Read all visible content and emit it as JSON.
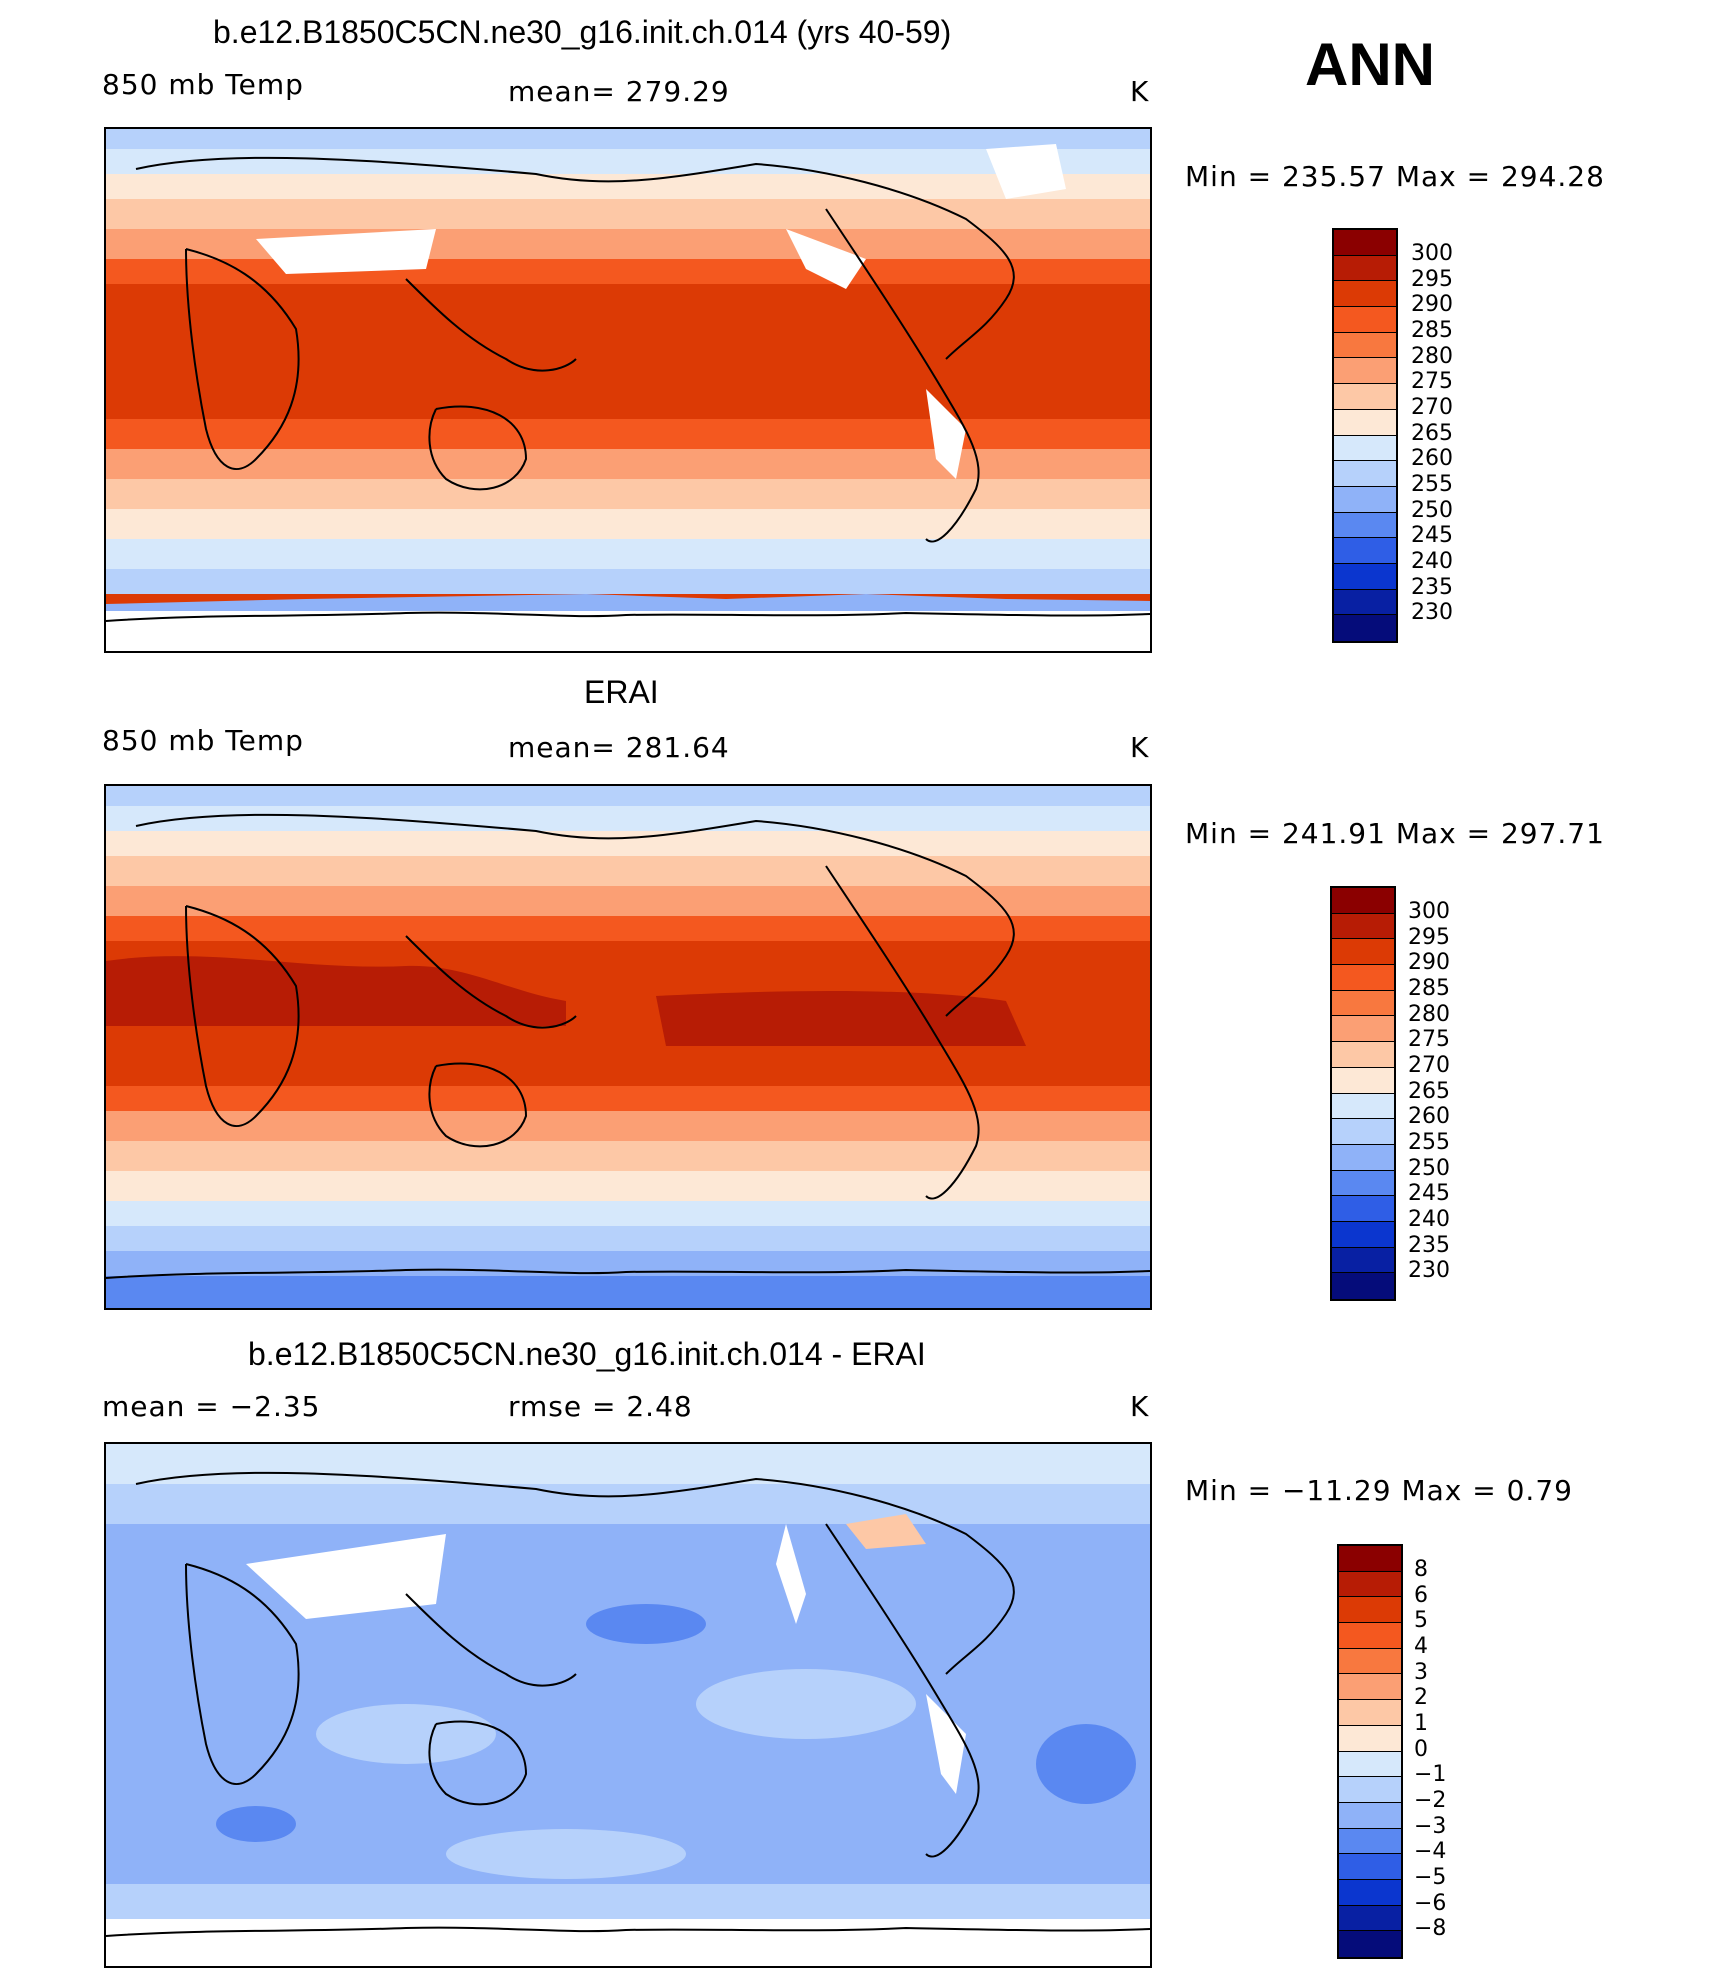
{
  "season": "ANN",
  "panels": [
    {
      "title": "b.e12.B1850C5CN.ne30_g16.init.ch.014 (yrs 40-59)",
      "left_label": "850 mb Temp",
      "center_label": "mean=  279.29",
      "units": "K",
      "minmax": "Min  =  235.57  Max  =  294.28"
    },
    {
      "title": "ERAI",
      "left_label": "850 mb Temp",
      "center_label": "mean=  281.64",
      "units": "K",
      "minmax": "Min  =  241.91  Max  =  297.71"
    },
    {
      "title": "b.e12.B1850C5CN.ne30_g16.init.ch.014 - ERAI",
      "left_label": "mean  =     −2.35",
      "center_label": "rmse  =      2.48",
      "units": "K",
      "minmax": "Min  =  −11.29  Max  =     0.79"
    }
  ],
  "chart_data": [
    {
      "type": "heatmap",
      "title": "b.e12.B1850C5CN.ne30_g16.init.ch.014 (yrs 40-59)",
      "variable": "850 mb Temp",
      "units": "K",
      "mean": 279.29,
      "min": 235.57,
      "max": 294.28,
      "contour_levels": [
        300,
        295,
        290,
        285,
        280,
        275,
        270,
        265,
        260,
        255,
        250,
        245,
        240,
        235,
        230
      ],
      "colorbar_colors": [
        "#8b0000",
        "#b71c05",
        "#dc3a05",
        "#f4581f",
        "#f8783f",
        "#fb9f74",
        "#fdc8a6",
        "#fde8d6",
        "#d6e8fb",
        "#b6d1fb",
        "#8fb2f8",
        "#5a88f1",
        "#2f5ee6",
        "#0b36cf",
        "#0820a3",
        "#050c7a"
      ]
    },
    {
      "type": "heatmap",
      "title": "ERAI",
      "variable": "850 mb Temp",
      "units": "K",
      "mean": 281.64,
      "min": 241.91,
      "max": 297.71,
      "contour_levels": [
        300,
        295,
        290,
        285,
        280,
        275,
        270,
        265,
        260,
        255,
        250,
        245,
        240,
        235,
        230
      ],
      "colorbar_colors": [
        "#8b0000",
        "#b71c05",
        "#dc3a05",
        "#f4581f",
        "#f8783f",
        "#fb9f74",
        "#fdc8a6",
        "#fde8d6",
        "#d6e8fb",
        "#b6d1fb",
        "#8fb2f8",
        "#5a88f1",
        "#2f5ee6",
        "#0b36cf",
        "#0820a3",
        "#050c7a"
      ]
    },
    {
      "type": "heatmap",
      "title": "b.e12.B1850C5CN.ne30_g16.init.ch.014 - ERAI",
      "units": "K",
      "mean": -2.35,
      "rmse": 2.48,
      "min": -11.29,
      "max": 0.79,
      "contour_levels": [
        "8",
        "6",
        "5",
        "4",
        "3",
        "2",
        "1",
        "0",
        "−1",
        "−2",
        "−3",
        "−4",
        "−5",
        "−6",
        "−8"
      ],
      "colorbar_colors": [
        "#8b0000",
        "#b71c05",
        "#dc3a05",
        "#f4581f",
        "#f8783f",
        "#fb9f74",
        "#fdc8a6",
        "#fde8d6",
        "#d6e8fb",
        "#b6d1fb",
        "#8fb2f8",
        "#5a88f1",
        "#2f5ee6",
        "#0b36cf",
        "#0820a3",
        "#050c7a"
      ]
    }
  ]
}
